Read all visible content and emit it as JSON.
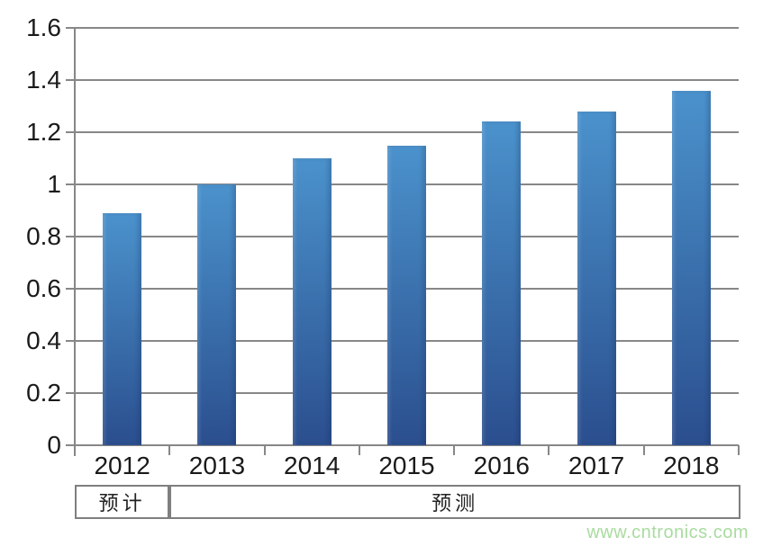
{
  "chart_data": {
    "type": "bar",
    "title": "",
    "xlabel": "",
    "ylabel": "",
    "categories": [
      "2012",
      "2013",
      "2014",
      "2015",
      "2016",
      "2017",
      "2018"
    ],
    "values": [
      0.89,
      1.0,
      1.1,
      1.15,
      1.24,
      1.28,
      1.36
    ],
    "ylim": [
      0,
      1.6
    ],
    "ytick_step": 0.2,
    "ytick_labels": [
      "0",
      "0.2",
      "0.4",
      "0.6",
      "0.8",
      "1",
      "1.2",
      "1.4",
      "1.6"
    ],
    "grid": true,
    "legend": "none",
    "bar_color_top": "#4b92cc",
    "bar_color_bottom": "#2b4e8e",
    "gridline_color": "#878787",
    "period_groups": [
      {
        "label": "预计",
        "span": 1
      },
      {
        "label": "预测",
        "span": 6
      }
    ]
  },
  "watermark": {
    "text": "www.cntronics.com",
    "color": "#a9dba0"
  }
}
